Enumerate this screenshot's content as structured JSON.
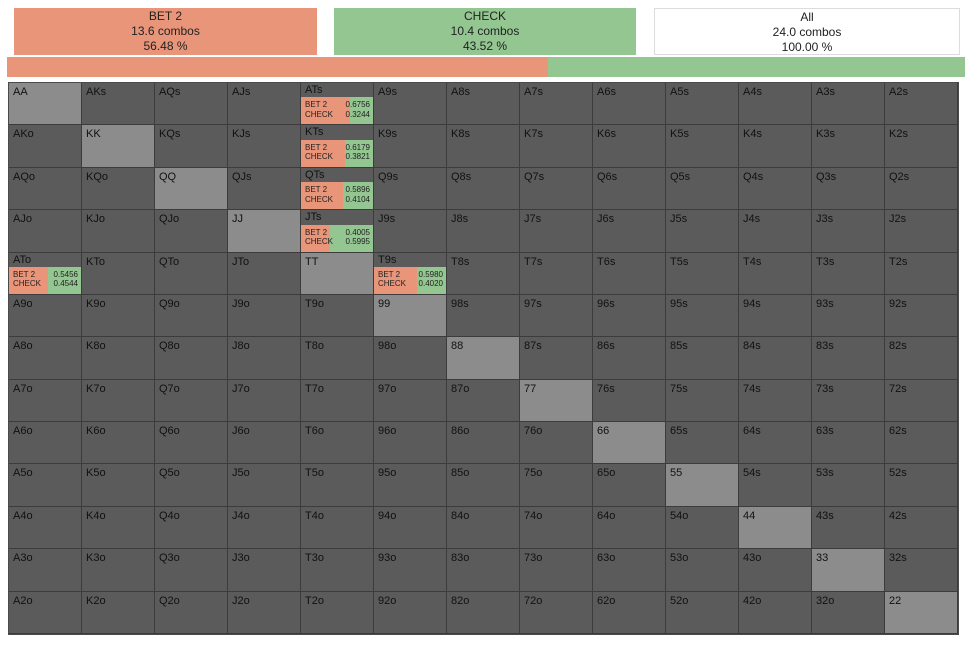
{
  "summary": {
    "bet": {
      "name": "BET 2",
      "combos": "13.6 combos",
      "pct": "56.48 %",
      "fraction": 0.5648
    },
    "check": {
      "name": "CHECK",
      "combos": "10.4 combos",
      "pct": "43.52 %",
      "fraction": 0.4352
    },
    "all": {
      "name": "All",
      "combos": "24.0 combos",
      "pct": "100.00 %"
    }
  },
  "colors": {
    "bet": "#e8957a",
    "check": "#93c690",
    "cell": "#5b5b5b",
    "pair": "#8c8c8c"
  },
  "grid": [
    [
      "AA",
      "AKs",
      "AQs",
      "AJs",
      "ATs",
      "A9s",
      "A8s",
      "A7s",
      "A6s",
      "A5s",
      "A4s",
      "A3s",
      "A2s"
    ],
    [
      "AKo",
      "KK",
      "KQs",
      "KJs",
      "KTs",
      "K9s",
      "K8s",
      "K7s",
      "K6s",
      "K5s",
      "K4s",
      "K3s",
      "K2s"
    ],
    [
      "AQo",
      "KQo",
      "QQ",
      "QJs",
      "QTs",
      "Q9s",
      "Q8s",
      "Q7s",
      "Q6s",
      "Q5s",
      "Q4s",
      "Q3s",
      "Q2s"
    ],
    [
      "AJo",
      "KJo",
      "QJo",
      "JJ",
      "JTs",
      "J9s",
      "J8s",
      "J7s",
      "J6s",
      "J5s",
      "J4s",
      "J3s",
      "J2s"
    ],
    [
      "ATo",
      "KTo",
      "QTo",
      "JTo",
      "TT",
      "T9s",
      "T8s",
      "T7s",
      "T6s",
      "T5s",
      "T4s",
      "T3s",
      "T2s"
    ],
    [
      "A9o",
      "K9o",
      "Q9o",
      "J9o",
      "T9o",
      "99",
      "98s",
      "97s",
      "96s",
      "95s",
      "94s",
      "93s",
      "92s"
    ],
    [
      "A8o",
      "K8o",
      "Q8o",
      "J8o",
      "T8o",
      "98o",
      "88",
      "87s",
      "86s",
      "85s",
      "84s",
      "83s",
      "82s"
    ],
    [
      "A7o",
      "K7o",
      "Q7o",
      "J7o",
      "T7o",
      "97o",
      "87o",
      "77",
      "76s",
      "75s",
      "74s",
      "73s",
      "72s"
    ],
    [
      "A6o",
      "K6o",
      "Q6o",
      "J6o",
      "T6o",
      "96o",
      "86o",
      "76o",
      "66",
      "65s",
      "64s",
      "63s",
      "62s"
    ],
    [
      "A5o",
      "K5o",
      "Q5o",
      "J5o",
      "T5o",
      "95o",
      "85o",
      "75o",
      "65o",
      "55",
      "54s",
      "53s",
      "52s"
    ],
    [
      "A4o",
      "K4o",
      "Q4o",
      "J4o",
      "T4o",
      "94o",
      "84o",
      "74o",
      "64o",
      "54o",
      "44",
      "43s",
      "42s"
    ],
    [
      "A3o",
      "K3o",
      "Q3o",
      "J3o",
      "T3o",
      "93o",
      "83o",
      "73o",
      "63o",
      "53o",
      "43o",
      "33",
      "32s"
    ],
    [
      "A2o",
      "K2o",
      "Q2o",
      "J2o",
      "T2o",
      "92o",
      "82o",
      "72o",
      "62o",
      "52o",
      "42o",
      "32o",
      "22"
    ]
  ],
  "strategies": {
    "ATs": {
      "bet": "0.6756",
      "check": "0.3244"
    },
    "KTs": {
      "bet": "0.6179",
      "check": "0.3821"
    },
    "QTs": {
      "bet": "0.5896",
      "check": "0.4104"
    },
    "JTs": {
      "bet": "0.4005",
      "check": "0.5995"
    },
    "ATo": {
      "bet": "0.5456",
      "check": "0.4544"
    },
    "T9s": {
      "bet": "0.5980",
      "check": "0.4020"
    }
  },
  "strategy_labels": {
    "bet": "BET 2",
    "check": "CHECK"
  }
}
